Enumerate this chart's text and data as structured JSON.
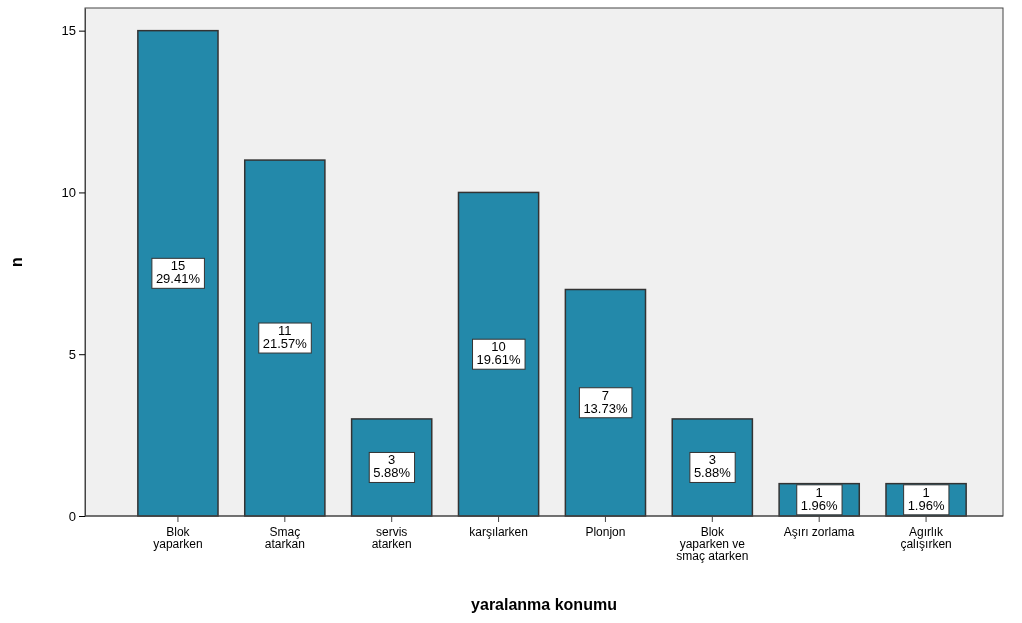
{
  "chart_data": {
    "type": "bar",
    "xlabel": "yaralanma konumu",
    "ylabel": "n",
    "categories": [
      "Blok yaparken",
      "Smaç atarkan",
      "servis atarken",
      "karşılarken",
      "Plonjon",
      "Blok yaparken ve smaç atarken",
      "Aşırı zorlama",
      "Agırlık çalışırken"
    ],
    "values": [
      15,
      11,
      3,
      10,
      7,
      3,
      1,
      1
    ],
    "value_labels": [
      "15\n29.41%",
      "11\n21.57%",
      "3\n5.88%",
      "10\n19.61%",
      "7\n13.73%",
      "3\n5.88%",
      "1\n1.96%",
      "1\n1.96%"
    ],
    "color": "#2389aa",
    "ylim": [
      0,
      15.7
    ],
    "yticks": [
      0,
      5,
      10,
      15
    ],
    "grid": false
  }
}
